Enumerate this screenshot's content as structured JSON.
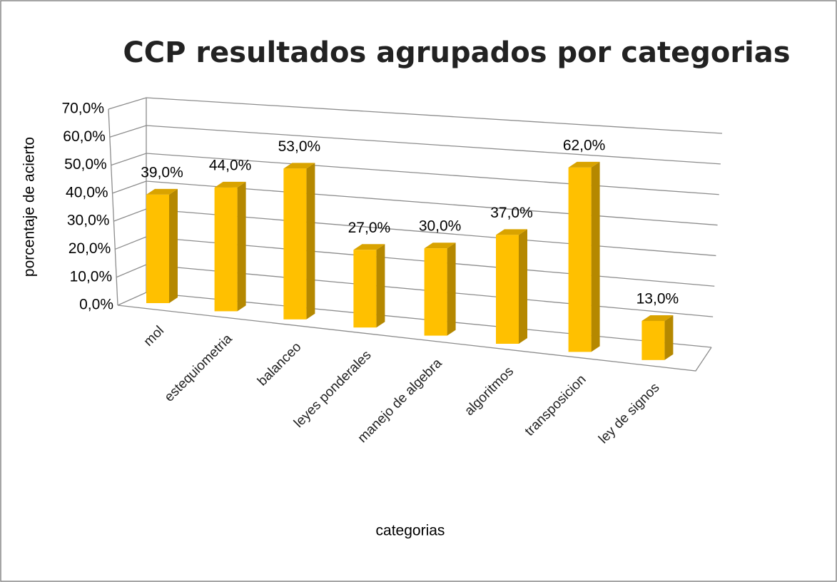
{
  "chart_data": {
    "type": "bar3d",
    "title": "CCP resultados agrupados por categorias",
    "x_label": "categorias",
    "y_label": "porcentaje de acierto",
    "categories": [
      "mol",
      "estequiometria",
      "balanceo",
      "leyes ponderales",
      "manejo de algebra",
      "algoritmos",
      "transposicion",
      "ley de signos"
    ],
    "values": [
      39,
      44,
      53,
      27,
      30,
      37,
      62,
      13
    ],
    "value_labels": [
      "39,0%",
      "44,0%",
      "53,0%",
      "27,0%",
      "30,0%",
      "37,0%",
      "62,0%",
      "13,0%"
    ],
    "color": "#ffc000",
    "ylim": [
      0,
      70
    ],
    "yticks": [
      {
        "value": 0,
        "label": "0,0%"
      },
      {
        "value": 10,
        "label": "10,0%"
      },
      {
        "value": 20,
        "label": "20,0%"
      },
      {
        "value": 30,
        "label": "30,0%"
      },
      {
        "value": 40,
        "label": "40,0%"
      },
      {
        "value": 50,
        "label": "50,0%"
      },
      {
        "value": 60,
        "label": "60,0%"
      },
      {
        "value": 70,
        "label": "70,0%"
      }
    ],
    "grid": true
  }
}
